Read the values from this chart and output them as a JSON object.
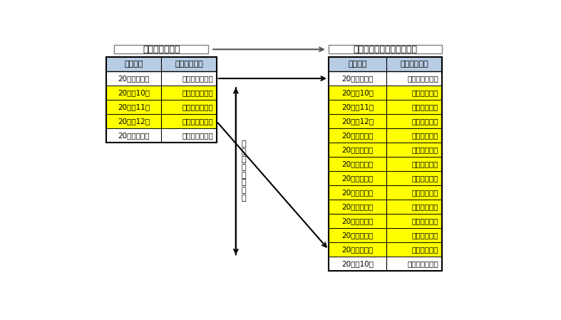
{
  "title_left": "当初の返還計画",
  "title_right": "減額返還適用後の返還計画",
  "header_bg": "#b8cce4",
  "yellow_bg": "#ffff00",
  "white_bg": "#ffffff",
  "border_color": "#000000",
  "left_headers": [
    "返還期日",
    "支払割賦金額"
  ],
  "right_headers": [
    "返還期日",
    "支払割賦金額"
  ],
  "left_rows": [
    [
      "20＊＊　９月",
      "１０，００１円",
      "white"
    ],
    [
      "20＊＊10月",
      "１０，００１円",
      "yellow"
    ],
    [
      "20＊＊11月",
      "１０，００１円",
      "yellow"
    ],
    [
      "20＊＊12月",
      "１０，００１円",
      "yellow"
    ],
    [
      "20＊＊　１月",
      "１０，００１円",
      "white"
    ]
  ],
  "right_rows": [
    [
      "20＊＊　９月",
      "１０，００１円",
      "white"
    ],
    [
      "20＊＊10月",
      "２，５０１円",
      "yellow"
    ],
    [
      "20＊＊11月",
      "２，５００円",
      "yellow"
    ],
    [
      "20＊＊12月",
      "２，５００円",
      "yellow"
    ],
    [
      "20＊＊　１月",
      "２，５００円",
      "yellow"
    ],
    [
      "20＊＊　２月",
      "２，５０１円",
      "yellow"
    ],
    [
      "20＊＊　３月",
      "２，５００円",
      "yellow"
    ],
    [
      "20＊＊　４月",
      "２，５００円",
      "yellow"
    ],
    [
      "20＊＊　５月",
      "２，５００円",
      "yellow"
    ],
    [
      "20＊＊　６月",
      "２，５０１円",
      "yellow"
    ],
    [
      "20＊＊　７月",
      "２，５００円",
      "yellow"
    ],
    [
      "20＊＊　８月",
      "２，５００円",
      "yellow"
    ],
    [
      "20＊＊　９月",
      "２，５００円",
      "yellow"
    ],
    [
      "20＊＊10月",
      "１０，００１円",
      "white"
    ]
  ],
  "middle_label": "減\n額\n返\n還\n適\n用\n期\n間",
  "fig_width": 7.87,
  "fig_height": 4.49,
  "dpi": 100
}
